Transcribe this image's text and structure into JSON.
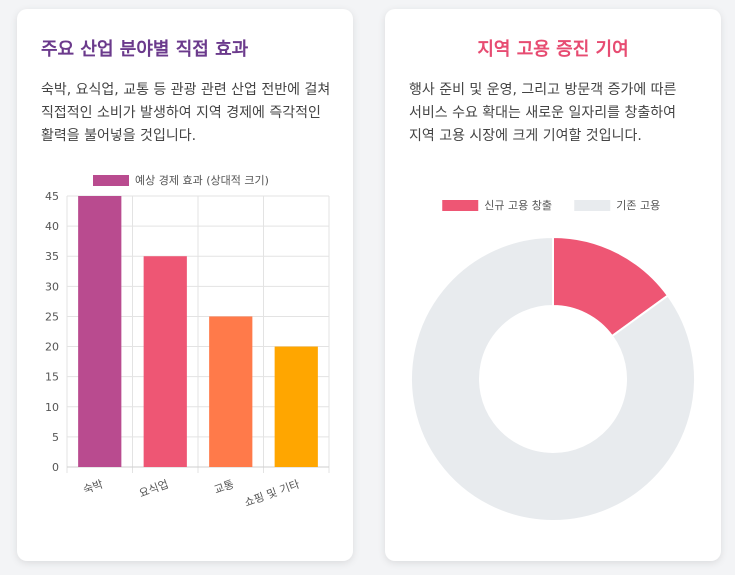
{
  "left_card": {
    "title": "주요 산업 분야별 직접 효과",
    "description": "숙박, 요식업, 교통 등 관광 관련 산업 전반에 걸쳐 직접적인 소비가 발생하여 지역 경제에 즉각적인 활력을 불어넣을 것입니다."
  },
  "right_card": {
    "title": "지역 고용 증진 기여",
    "description": "행사 준비 및 운영, 그리고 방문객 증가에 따른 서비스 수요 확대는 새로운 일자리를 창출하여 지역 고용 시장에 크게 기여할 것입니다."
  },
  "chart_data": [
    {
      "type": "bar",
      "title": "",
      "xlabel": "",
      "ylabel": "",
      "categories": [
        "숙박",
        "요식업",
        "교통",
        "쇼핑 및 기타"
      ],
      "series": [
        {
          "name": "예상 경제 효과 (상대적 크기)",
          "values": [
            45,
            35,
            25,
            20
          ]
        }
      ],
      "bar_colors": [
        "#b94b8f",
        "#ee5674",
        "#ff7a4a",
        "#ffa600"
      ],
      "ylim": [
        0,
        45
      ],
      "yticks": [
        0,
        5,
        10,
        15,
        20,
        25,
        30,
        35,
        40,
        45
      ],
      "grid": true,
      "legend": "top"
    },
    {
      "type": "pie",
      "style": "doughnut",
      "title": "",
      "labels": [
        "신규 고용 창출",
        "기존 고용"
      ],
      "values": [
        15,
        85
      ],
      "colors": [
        "#ee5674",
        "#e8ebee"
      ],
      "legend": "top"
    }
  ]
}
